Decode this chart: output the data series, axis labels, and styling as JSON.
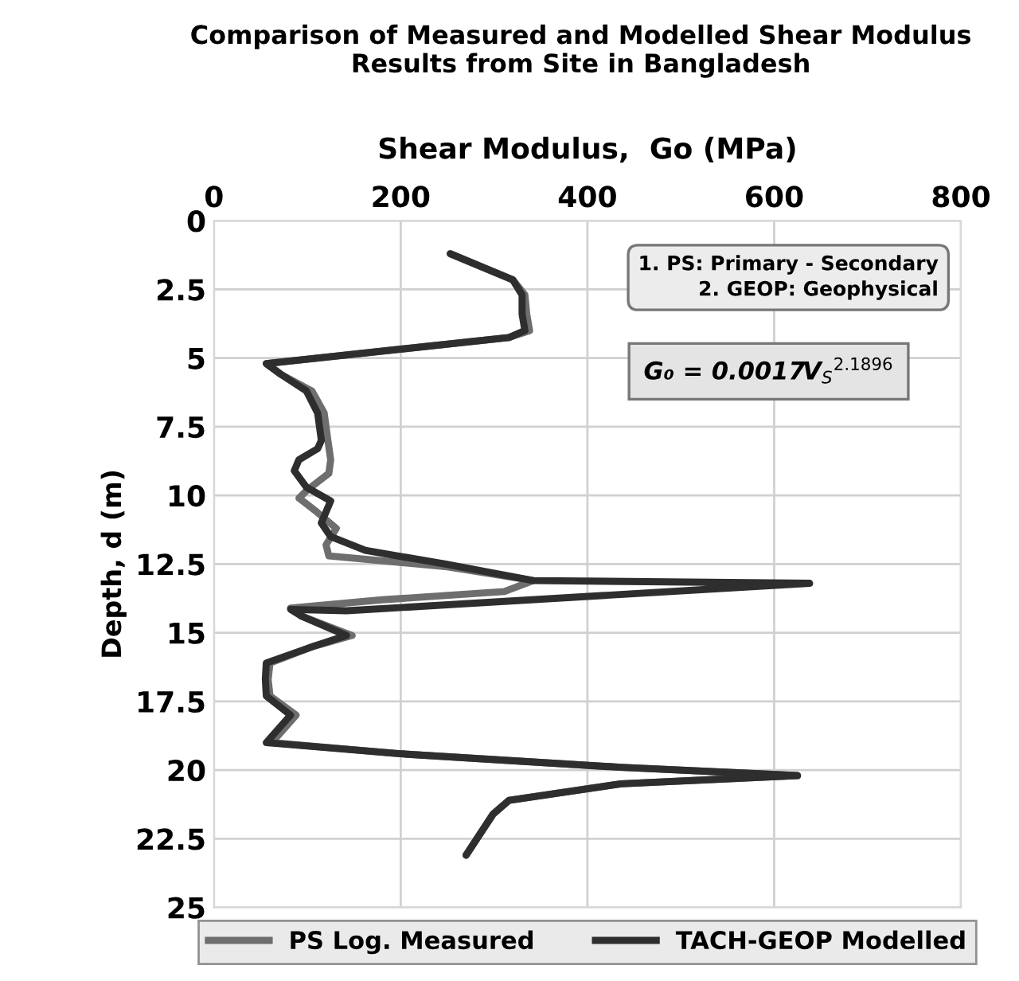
{
  "chart_data": {
    "type": "line",
    "title": "Comparison of Measured and Modelled Shear Modulus\nResults from Site in Bangladesh",
    "xlabel": "Shear Modulus,  Go (MPa)",
    "ylabel": "Depth, d (m)",
    "xlim": [
      0,
      800
    ],
    "xticks": [
      0,
      200,
      400,
      600,
      800
    ],
    "ylim": [
      25,
      0
    ],
    "yticks": [
      0,
      2.5,
      5,
      7.5,
      10,
      12.5,
      15,
      17.5,
      20,
      22.5,
      25
    ],
    "grid": true,
    "legend": "bottom",
    "marker": "none",
    "line_style": "solid",
    "annotations": [
      "1. PS: Primary - Secondary\n2. GEOP: Geophysical",
      "G₀ = 0.0017V$_{S}$$^{2.1896}$"
    ],
    "series": [
      {
        "name": "PS Log. Measured",
        "color": "#6e6e6e",
        "x": [
          253,
          320,
          333,
          335,
          338,
          316,
          56,
          72,
          105,
          118,
          122,
          125,
          123,
          100,
          91,
          110,
          131,
          120,
          123,
          250,
          342,
          311,
          180,
          82,
          94,
          148,
          106,
          60,
          58,
          60,
          88,
          62,
          197,
          436,
          625,
          436,
          316,
          299,
          270
        ],
        "values": [
          1.2,
          2.15,
          2.7,
          3.4,
          4.0,
          4.25,
          5.2,
          5.6,
          6.2,
          7.0,
          8.0,
          8.7,
          9.2,
          9.8,
          10.1,
          10.6,
          11.2,
          11.8,
          12.2,
          12.6,
          13.1,
          13.5,
          13.8,
          14.1,
          14.4,
          15.1,
          15.5,
          16.1,
          16.7,
          17.3,
          18.0,
          19.0,
          19.4,
          19.9,
          20.2,
          20.5,
          21.1,
          21.6,
          23.1
        ]
      },
      {
        "name": "TACH-GEOP Modelled",
        "color": "#2e2e2e",
        "x": [
          253,
          320,
          330,
          330,
          333,
          316,
          56,
          72,
          99,
          111,
          115,
          111,
          91,
          86,
          99,
          125,
          115,
          125,
          162,
          248,
          342,
          638,
          142,
          82,
          94,
          142,
          106,
          56,
          55,
          56,
          82,
          56,
          197,
          436,
          625,
          436,
          316,
          299,
          270
        ],
        "values": [
          1.2,
          2.15,
          2.7,
          3.4,
          4.0,
          4.25,
          5.2,
          5.6,
          6.2,
          7.0,
          8.0,
          8.3,
          8.7,
          9.1,
          9.7,
          10.2,
          11.0,
          11.5,
          12.0,
          12.5,
          13.1,
          13.2,
          14.2,
          14.15,
          14.4,
          15.1,
          15.5,
          16.1,
          16.7,
          17.3,
          18.0,
          19.0,
          19.4,
          19.9,
          20.2,
          20.5,
          21.1,
          21.6,
          23.1
        ]
      }
    ]
  }
}
